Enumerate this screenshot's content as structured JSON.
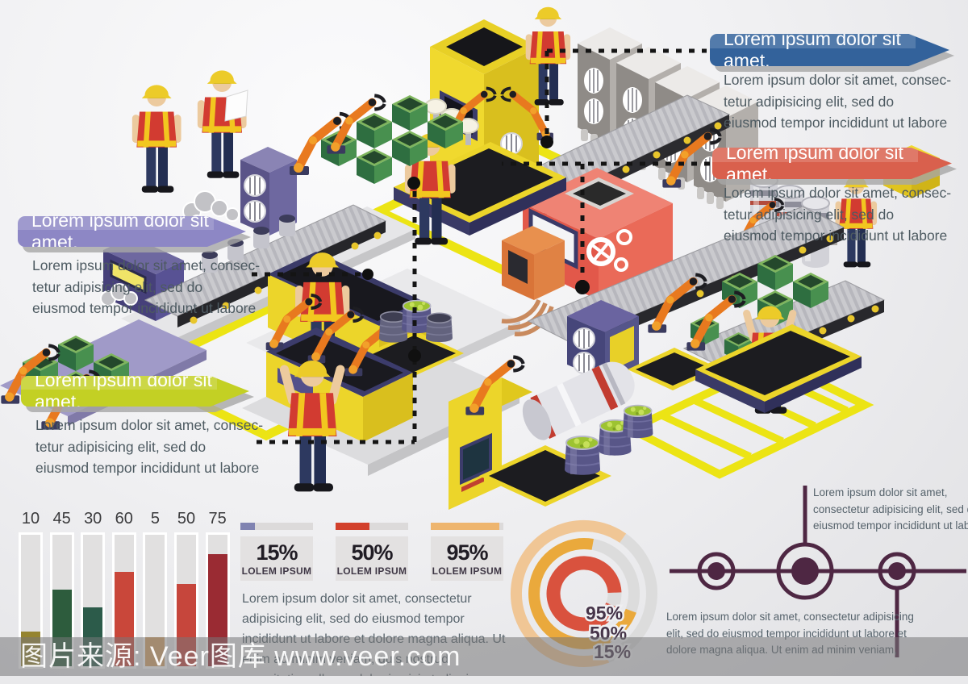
{
  "callouts": {
    "blue": {
      "title": "Lorem ipsum dolor sit amet,",
      "color": "#33629b",
      "lines": [
        "Lorem ipsum dolor sit amet, consec-",
        "tetur adipisicing elit, sed do",
        "eiusmod tempor incididunt ut labore"
      ]
    },
    "red": {
      "title": "Lorem ipsum dolor sit amet,",
      "color": "#d9604d",
      "lines": [
        "Lorem ipsum dolor sit amet, consec-",
        "tetur adipisicing elit, sed do",
        "eiusmod tempor incididunt ut labore"
      ]
    },
    "purple": {
      "title": "Lorem ipsum dolor sit amet,",
      "color": "#8d87c5",
      "lines": [
        "Lorem ipsum dolor sit amet, consec-",
        "tetur adipisicing elit, sed do",
        "eiusmod tempor incididunt ut labore"
      ]
    },
    "green": {
      "title": "Lorem ipsum dolor sit amet,",
      "color": "#c3d024",
      "lines": [
        "Lorem ipsum dolor sit amet, consec-",
        "tetur adipisicing elit, sed do",
        "eiusmod tempor incididunt ut labore"
      ]
    }
  },
  "bar_chart": {
    "labels": [
      "10",
      "45",
      "30",
      "60",
      "5",
      "50",
      "75"
    ],
    "values": [
      10,
      45,
      30,
      60,
      5,
      50,
      75
    ],
    "colors": [
      "#95842f",
      "#2d5c3d",
      "#2c5b4a",
      "#c9473a",
      "#d9a566",
      "#c6463c",
      "#9a2b33"
    ]
  },
  "stats": [
    {
      "value": "15%",
      "label": "LOLEM IPSUM",
      "color": "#8083b1",
      "fill": 20
    },
    {
      "value": "50%",
      "label": "LOLEM IPSUM",
      "color": "#d2402c",
      "fill": 47
    },
    {
      "value": "95%",
      "label": "LOLEM IPSUM",
      "color": "#eeb56e",
      "fill": 94
    }
  ],
  "paragraph": "Lorem ipsum dolor sit amet, consectetur adipisicing elit, sed do eiusmod tempor incididunt ut labore et dolore magna aliqua. Ut enim ad minim veniam, quis nostrud exercitation ullamco laboris nisi ut aliquip ex ea commodo consequat",
  "donut": {
    "labels": [
      "95%",
      "50%",
      "15%"
    ],
    "ring_colors": [
      "#d9523e",
      "#eaa93c",
      "#f0c695"
    ],
    "track_color": "#dcdcdc"
  },
  "plane": {
    "top_lines": [
      "Lorem ipsum dolor sit amet,",
      "consectetur adipisicing elit, sed do",
      "eiusmod tempor incididunt ut labore"
    ],
    "bottom_lines": [
      "Lorem ipsum dolor sit amet, consectetur adipisicing",
      "elit, sed do eiusmod tempor incididunt ut labore et",
      "dolore magna aliqua. Ut enim ad minim veniam,"
    ],
    "color": "#4e2743"
  },
  "watermark": "图片来源: Veer图库 www.veer.com",
  "chart_data": [
    {
      "type": "bar",
      "categories": [
        "10",
        "45",
        "30",
        "60",
        "5",
        "50",
        "75"
      ],
      "values": [
        10,
        45,
        30,
        60,
        5,
        50,
        75
      ],
      "title": "",
      "xlabel": "",
      "ylabel": "",
      "ylim": [
        0,
        80
      ],
      "grid": false,
      "colors": [
        "#95842f",
        "#2d5c3d",
        "#2c5b4a",
        "#c9473a",
        "#d9a566",
        "#c6463c",
        "#9a2b33"
      ]
    },
    {
      "type": "pie",
      "subtype": "concentric-donut",
      "rings": [
        {
          "label": "95%",
          "value": 95,
          "color": "#d9523e"
        },
        {
          "label": "50%",
          "value": 50,
          "color": "#eaa93c"
        },
        {
          "label": "15%",
          "value": 15,
          "color": "#f0c695"
        }
      ]
    },
    {
      "type": "bar",
      "subtype": "progress",
      "categories": [
        "LOLEM IPSUM",
        "LOLEM IPSUM",
        "LOLEM IPSUM"
      ],
      "values": [
        15,
        50,
        95
      ]
    }
  ]
}
